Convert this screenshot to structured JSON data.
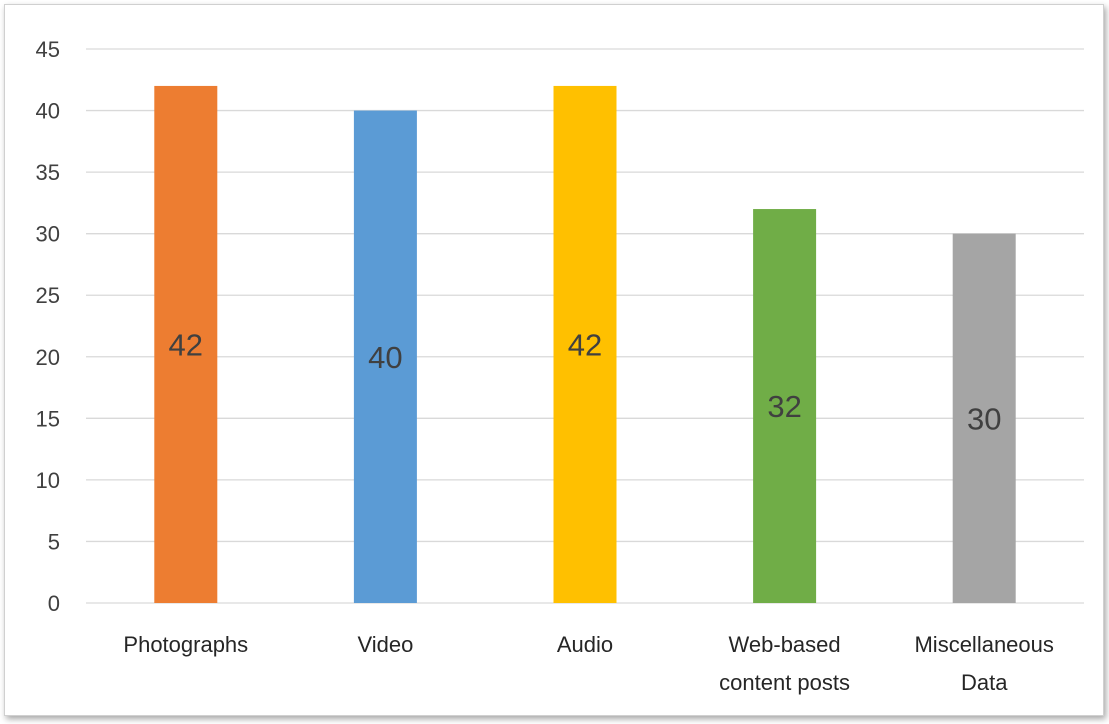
{
  "chart_data": {
    "type": "bar",
    "title": "",
    "xlabel": "",
    "ylabel": "",
    "categories": [
      [
        "Photographs"
      ],
      [
        "Video"
      ],
      [
        "Audio"
      ],
      [
        "Web-based",
        "content posts"
      ],
      [
        "Miscellaneous",
        "Data"
      ]
    ],
    "values": [
      42,
      40,
      42,
      32,
      30
    ],
    "colors": [
      "#ed7d31",
      "#5b9bd5",
      "#ffc000",
      "#70ad47",
      "#a5a5a5"
    ],
    "ylim": [
      0,
      45
    ],
    "yticks": [
      0,
      5,
      10,
      15,
      20,
      25,
      30,
      35,
      40,
      45
    ],
    "grid": true,
    "legend": "none",
    "data_labels": "center"
  }
}
